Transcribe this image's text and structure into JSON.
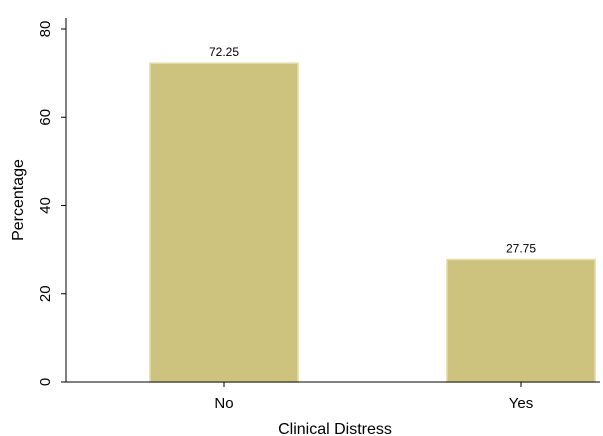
{
  "chart_data": {
    "type": "bar",
    "categories": [
      "No",
      "Yes"
    ],
    "values": [
      72.25,
      27.75
    ],
    "data_labels": [
      "72.25",
      "27.75"
    ],
    "xlabel": "Clinical Distress",
    "ylabel": "Percentage",
    "ylim": [
      0,
      80
    ],
    "yticks": [
      0,
      20,
      40,
      60,
      80
    ],
    "grid": false,
    "legend": "none",
    "bar_color": "#cdc27e",
    "bar_edge_color": "#e3dba6"
  }
}
